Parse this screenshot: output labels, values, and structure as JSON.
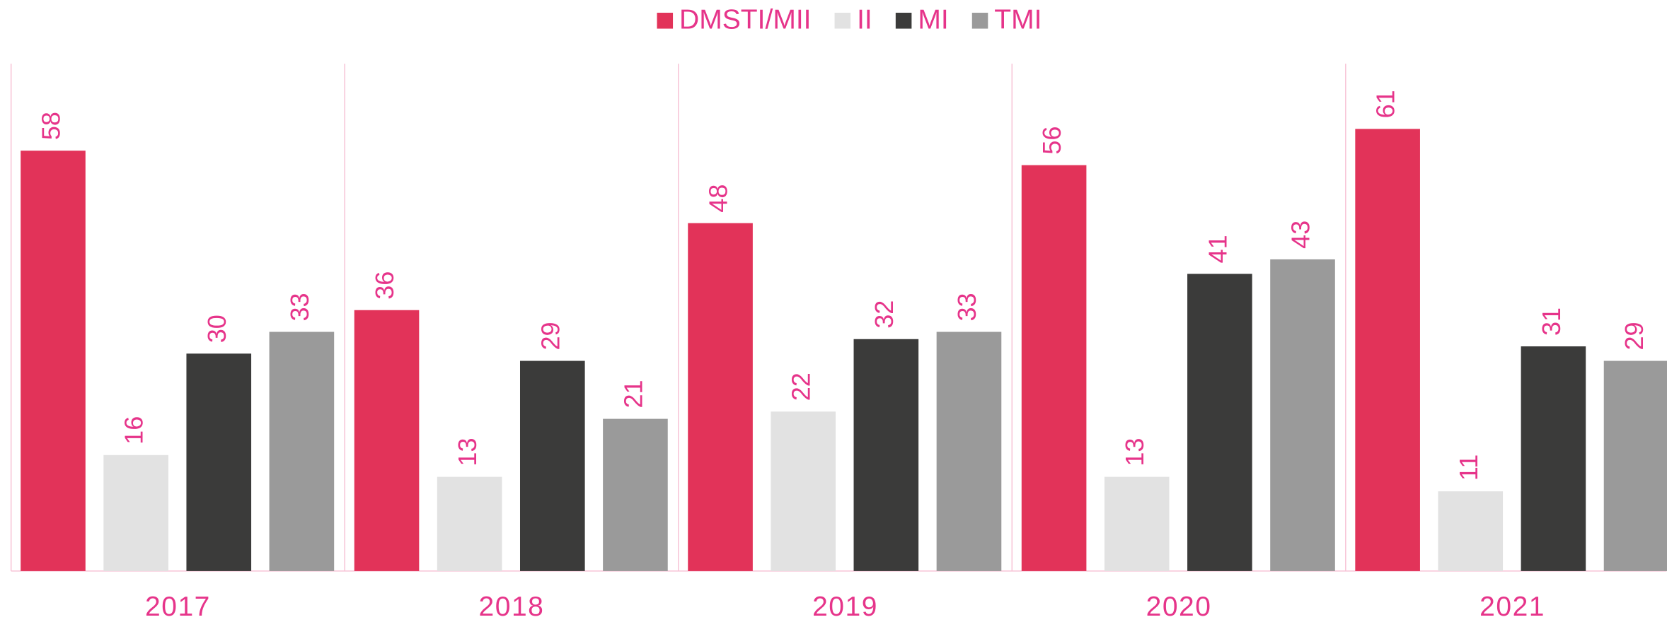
{
  "chart_data": {
    "type": "bar",
    "categories": [
      "2017",
      "2018",
      "2019",
      "2020",
      "2021"
    ],
    "series": [
      {
        "name": "DMSTI/MII",
        "color": "#e23359",
        "values": [
          58,
          36,
          48,
          56,
          61
        ]
      },
      {
        "name": "II",
        "color": "#e2e2e2",
        "values": [
          16,
          13,
          22,
          13,
          11
        ]
      },
      {
        "name": "MI",
        "color": "#3b3b3a",
        "values": [
          30,
          29,
          32,
          41,
          31
        ]
      },
      {
        "name": "TMI",
        "color": "#9a9a9a",
        "values": [
          33,
          21,
          33,
          43,
          29
        ]
      }
    ],
    "ylim": [
      0,
      70
    ],
    "legend": "top"
  }
}
